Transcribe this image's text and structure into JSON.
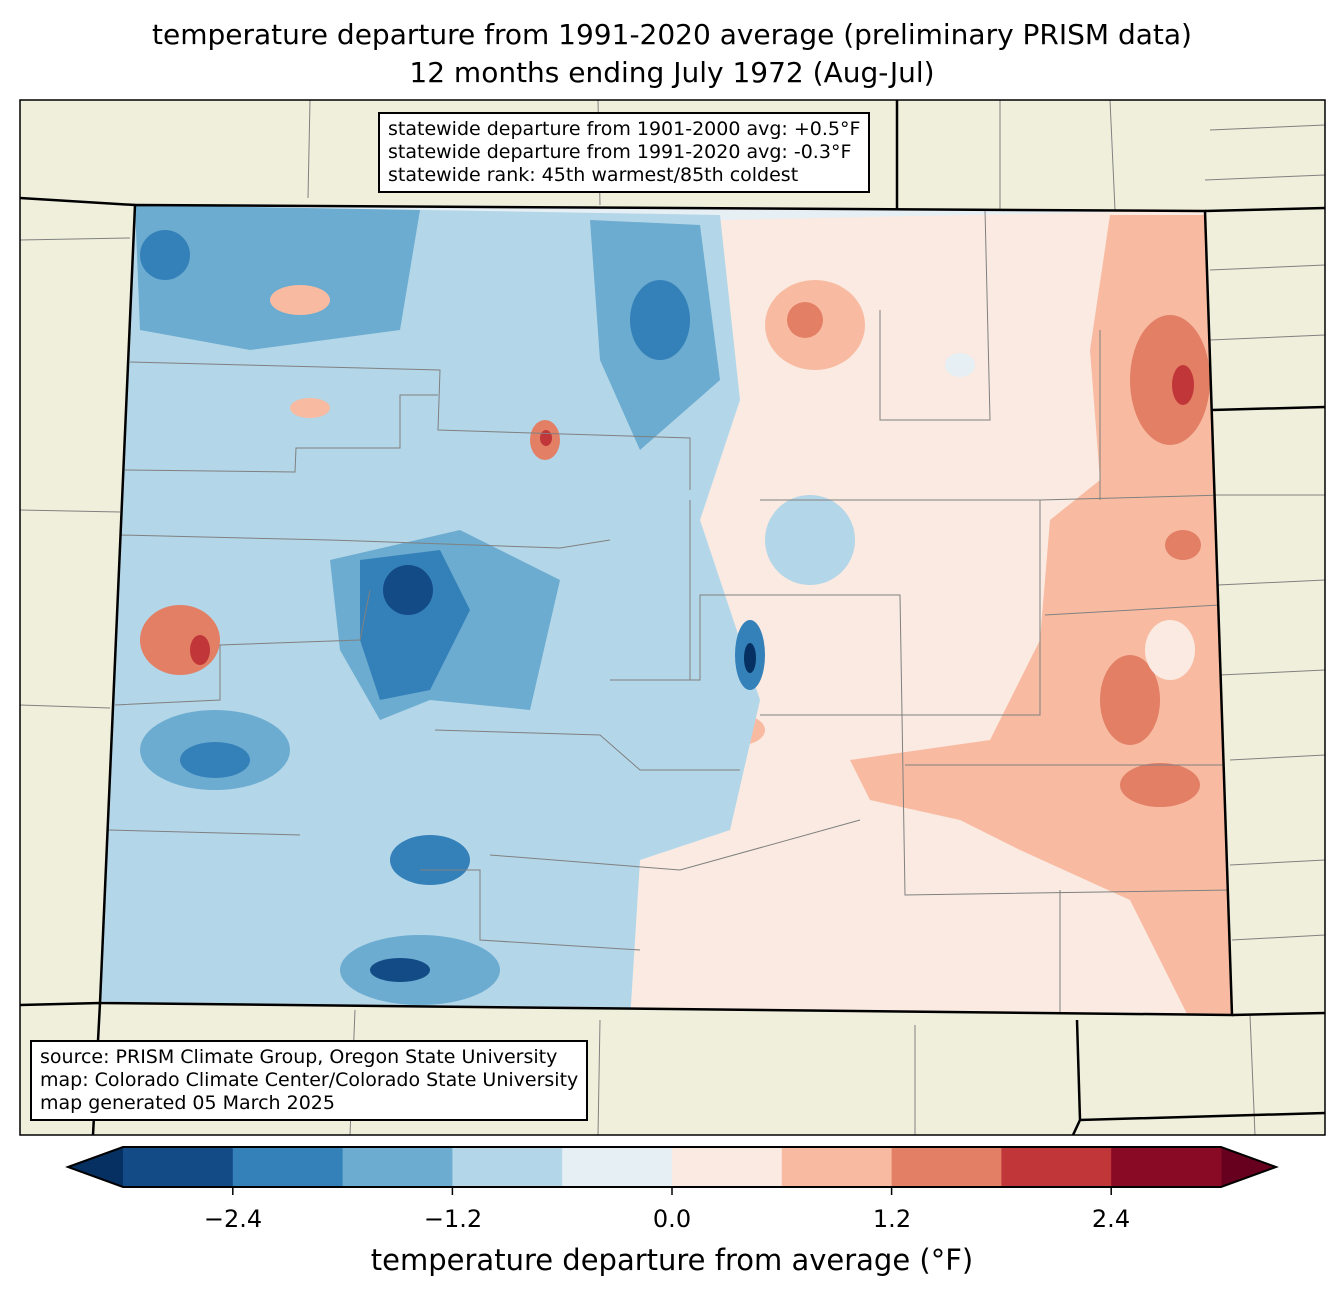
{
  "title": {
    "line1": "temperature departure from 1991-2020 average (preliminary PRISM data)",
    "line2": "12 months ending July 1972 (Aug-Jul)"
  },
  "stats_box": {
    "line1": "statewide departure from 1901-2000 avg: +0.5°F",
    "line2": "statewide departure from 1991-2020 avg: -0.3°F",
    "line3": "statewide rank: 45th warmest/85th coldest"
  },
  "source_box": {
    "line1": "source: PRISM Climate Group, Oregon State University",
    "line2": "map: Colorado Climate Center/Colorado State University",
    "line3": "map generated 05 March 2025"
  },
  "colorbar": {
    "label": "temperature departure from average (°F)",
    "ticks": [
      "−2.4",
      "−1.2",
      "0.0",
      "1.2",
      "2.4"
    ],
    "tick_values": [
      -2.4,
      -1.2,
      0.0,
      1.2,
      2.4
    ],
    "bounds": [
      -3.0,
      -2.4,
      -1.8,
      -1.2,
      -0.6,
      0.0,
      0.6,
      1.2,
      1.8,
      2.4,
      3.0
    ],
    "colors": [
      "#134b87",
      "#3480b9",
      "#6bacd0",
      "#b3d6e8",
      "#e6eff4",
      "#faeae1",
      "#f8bba1",
      "#e27f65",
      "#c13639",
      "#890a24"
    ],
    "under_color": "#053061",
    "over_color": "#67001f"
  },
  "map_colors": {
    "background": "#f0efdc",
    "county_line": "#808080",
    "state_line": "#000000"
  }
}
